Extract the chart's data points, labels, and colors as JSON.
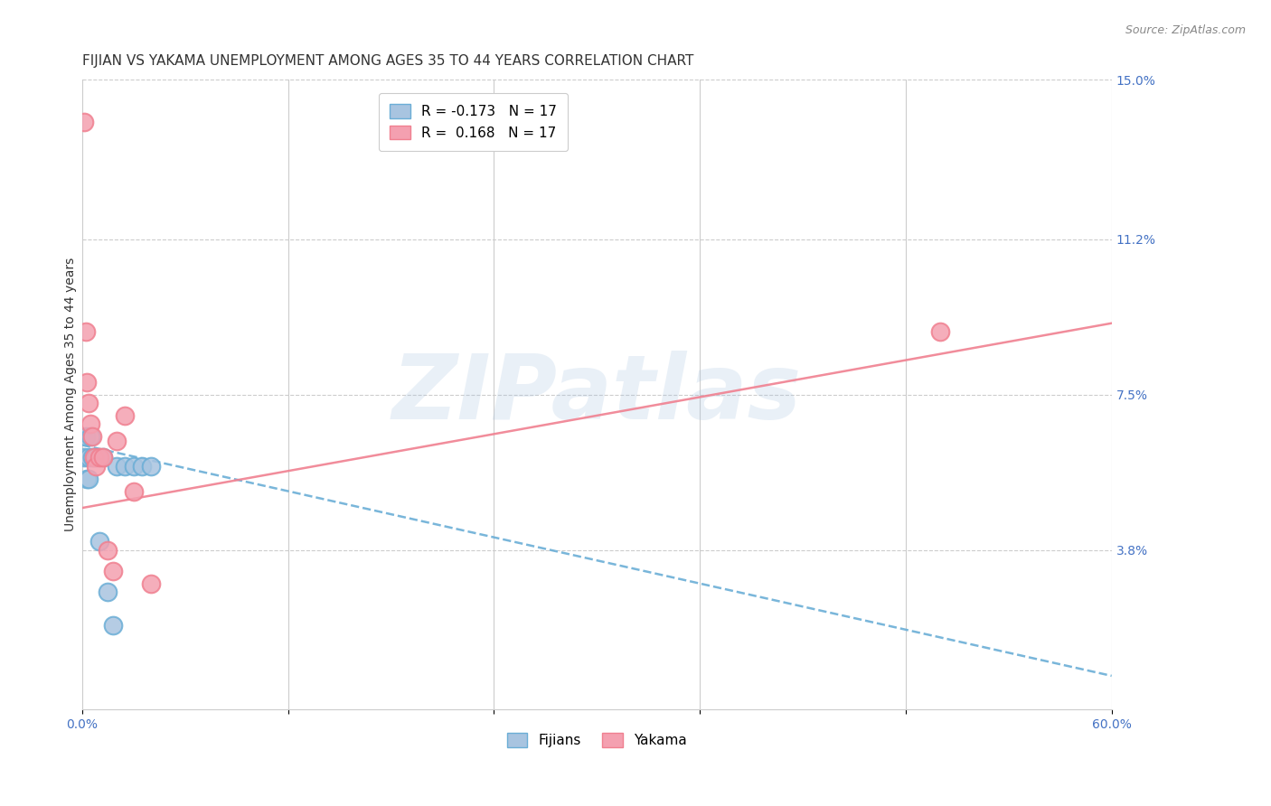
{
  "title": "FIJIAN VS YAKAMA UNEMPLOYMENT AMONG AGES 35 TO 44 YEARS CORRELATION CHART",
  "source": "Source: ZipAtlas.com",
  "ylabel": "Unemployment Among Ages 35 to 44 years",
  "xlim": [
    0.0,
    0.6
  ],
  "ylim": [
    0.0,
    0.15
  ],
  "xtick_positions": [
    0.0,
    0.12,
    0.24,
    0.36,
    0.48,
    0.6
  ],
  "xticklabels": [
    "0.0%",
    "",
    "",
    "",
    "",
    "60.0%"
  ],
  "right_yticks": [
    0.0,
    0.038,
    0.075,
    0.112,
    0.15
  ],
  "right_yticklabels": [
    "",
    "3.8%",
    "7.5%",
    "11.2%",
    "15.0%"
  ],
  "watermark": "ZIPatlas",
  "watermark_color": "#a8c4e0",
  "fijian_color": "#a8c4e0",
  "yakama_color": "#f4a0b0",
  "fijian_edge_color": "#6baed6",
  "yakama_edge_color": "#f08090",
  "fijian_trend_color": "#6baed6",
  "yakama_trend_color": "#f08090",
  "legend_r_fijian": "R = -0.173",
  "legend_n_fijian": "N = 17",
  "legend_r_yakama": "R =  0.168",
  "legend_n_yakama": "N = 17",
  "fijian_x": [
    0.001,
    0.002,
    0.003,
    0.004,
    0.004,
    0.005,
    0.006,
    0.008,
    0.01,
    0.012,
    0.015,
    0.018,
    0.02,
    0.025,
    0.03,
    0.035,
    0.04
  ],
  "fijian_y": [
    0.06,
    0.065,
    0.055,
    0.06,
    0.055,
    0.065,
    0.06,
    0.06,
    0.04,
    0.06,
    0.028,
    0.02,
    0.058,
    0.058,
    0.058,
    0.058,
    0.058
  ],
  "yakama_x": [
    0.001,
    0.002,
    0.003,
    0.004,
    0.005,
    0.006,
    0.007,
    0.008,
    0.01,
    0.012,
    0.015,
    0.018,
    0.02,
    0.025,
    0.03,
    0.04,
    0.5
  ],
  "yakama_y": [
    0.14,
    0.09,
    0.078,
    0.073,
    0.068,
    0.065,
    0.06,
    0.058,
    0.06,
    0.06,
    0.038,
    0.033,
    0.064,
    0.07,
    0.052,
    0.03,
    0.09
  ],
  "fijian_trend_x": [
    0.0,
    0.6
  ],
  "fijian_trend_y": [
    0.063,
    0.008
  ],
  "yakama_trend_x": [
    0.0,
    0.6
  ],
  "yakama_trend_y": [
    0.048,
    0.092
  ],
  "grid_color": "#cccccc",
  "background_color": "#ffffff",
  "title_fontsize": 11,
  "axis_label_fontsize": 10,
  "tick_fontsize": 10,
  "legend_fontsize": 11
}
